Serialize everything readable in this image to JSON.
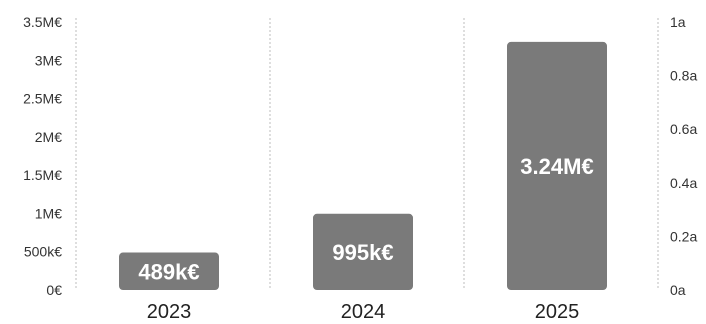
{
  "chart_data": {
    "type": "bar",
    "categories": [
      "2023",
      "2024",
      "2025"
    ],
    "values": [
      489000,
      995000,
      3240000
    ],
    "data_labels": [
      "489k€",
      "995k€",
      "3.24M€"
    ],
    "y_ticks": [
      {
        "value": 0,
        "label": "0€"
      },
      {
        "value": 500000,
        "label": "500k€"
      },
      {
        "value": 1000000,
        "label": "1M€"
      },
      {
        "value": 1500000,
        "label": "1.5M€"
      },
      {
        "value": 2000000,
        "label": "2M€"
      },
      {
        "value": 2500000,
        "label": "2.5M€"
      },
      {
        "value": 3000000,
        "label": "3M€"
      },
      {
        "value": 3500000,
        "label": "3.5M€"
      }
    ],
    "ylim": [
      0,
      3500000
    ],
    "y2_ticks": [
      {
        "value": 0,
        "label": "0a"
      },
      {
        "value": 0.2,
        "label": "0.2a"
      },
      {
        "value": 0.4,
        "label": "0.4a"
      },
      {
        "value": 0.6,
        "label": "0.6a"
      },
      {
        "value": 0.8,
        "label": "0.8a"
      },
      {
        "value": 1,
        "label": "1a"
      }
    ],
    "y2lim": [
      0,
      1
    ],
    "title": "",
    "xlabel": "",
    "ylabel": "",
    "grid": "vertical-dashed",
    "legend": "none",
    "bar_color": "#7a7a7a"
  }
}
